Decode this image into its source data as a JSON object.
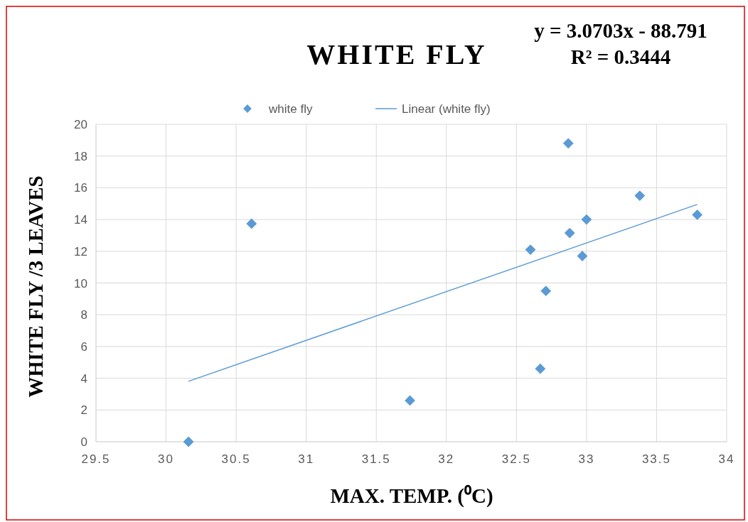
{
  "chart_data": {
    "type": "scatter",
    "title": "WHITE FLY",
    "xlabel": "MAX. TEMP. (⁰C)",
    "ylabel": "WHITE FLY /3 LEAVES",
    "annotations": [
      "y = 3.0703x - 88.791",
      "R² = 0.3444"
    ],
    "xlim": [
      29.5,
      34
    ],
    "xticks": [
      29.5,
      30,
      30.5,
      31,
      31.5,
      32,
      32.5,
      33,
      33.5,
      34
    ],
    "ylim": [
      0,
      20
    ],
    "yticks": [
      0,
      2,
      4,
      6,
      8,
      10,
      12,
      14,
      16,
      18,
      20
    ],
    "grid": true,
    "legend": "top",
    "series": [
      {
        "name": "white fly",
        "marker": "diamond",
        "color": "#5b9bd5",
        "x": [
          30.16,
          30.61,
          31.74,
          32.6,
          32.67,
          32.71,
          32.87,
          32.88,
          32.97,
          33.0,
          33.38,
          33.79
        ],
        "values": [
          0,
          13.74,
          2.6,
          12.1,
          4.6,
          9.5,
          18.8,
          13.15,
          11.7,
          14.0,
          15.5,
          14.3
        ]
      },
      {
        "name": "Linear (white fly)",
        "type": "line",
        "color": "#5b9bd5",
        "line_style": "solid",
        "x": [
          30.16,
          33.79
        ],
        "values": [
          3.81,
          14.95
        ]
      }
    ]
  }
}
